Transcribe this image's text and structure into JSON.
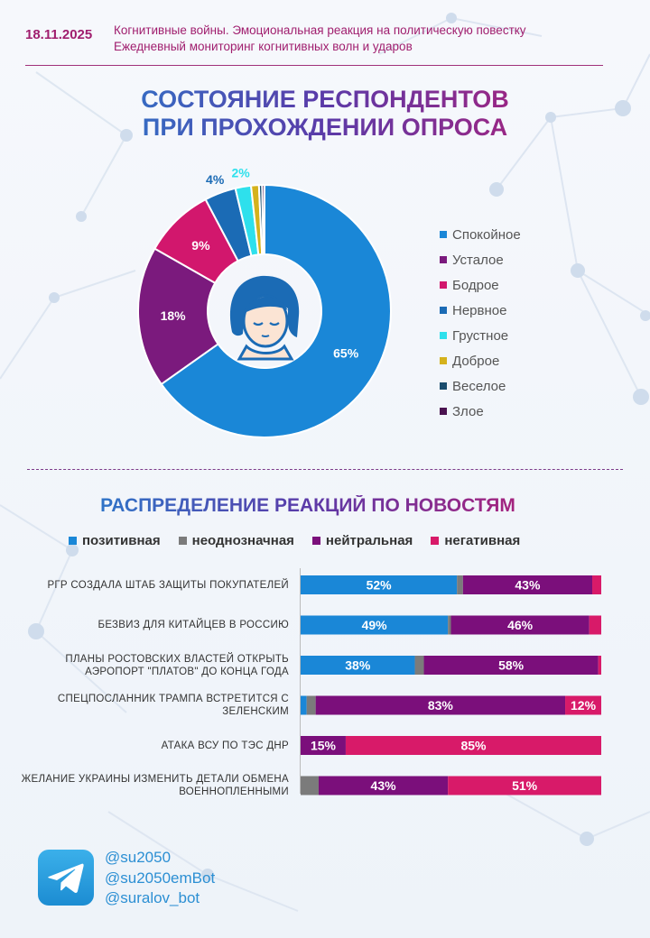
{
  "header": {
    "date": "18.11.2025",
    "line1": "Когнитивные войны. Эмоциональная реакция на политическую повестку",
    "line2": "Ежедневный мониторинг когнитивных волн и ударов"
  },
  "chart_data": [
    {
      "type": "pie",
      "title": "СОСТОЯНИЕ РЕСПОНДЕНТОВ ПРИ ПРОХОЖДЕНИИ ОПРОСА",
      "title_lines": [
        "СОСТОЯНИЕ РЕСПОНДЕНТОВ",
        "ПРИ ПРОХОЖДЕНИИ ОПРОСА"
      ],
      "donut": true,
      "slices": [
        {
          "name": "Спокойное",
          "value": 65,
          "label": "65%",
          "color": "#1a87d7"
        },
        {
          "name": "Усталое",
          "value": 18,
          "label": "18%",
          "color": "#7b1a7d"
        },
        {
          "name": "Бодрое",
          "value": 9,
          "label": "9%",
          "color": "#d2176d"
        },
        {
          "name": "Нервное",
          "value": 4,
          "label": "4%",
          "color": "#1b6bb5"
        },
        {
          "name": "Грустное",
          "value": 2,
          "label": "2%",
          "color": "#2ee0ec"
        },
        {
          "name": "Доброе",
          "value": 1,
          "label": "",
          "color": "#d5b21c"
        },
        {
          "name": "Веселое",
          "value": 0.4,
          "label": "",
          "color": "#1a4d6e"
        },
        {
          "name": "Злое",
          "value": 0.3,
          "label": "",
          "color": "#4a1250"
        }
      ],
      "legend": "right"
    },
    {
      "type": "bar",
      "orientation": "horizontal",
      "stacked": "100%",
      "title": "РАСПРЕДЕЛЕНИЕ РЕАКЦИЙ ПО НОВОСТЯМ",
      "categories": [
        "РГР создала штаб защиты покупателей",
        "Безвиз для китайцев в Россию",
        "Планы ростовских властей открыть аэропорт \"Платов\" до конца года",
        "Спецпосланник Трампа встретится с Зеленским",
        "Атака ВСУ по ТЭС ДНР",
        "Желание Украины изменить детали обмена военнопленными"
      ],
      "series": [
        {
          "name": "позитивная",
          "color": "#1a87d7",
          "values": [
            52,
            49,
            38,
            2,
            0,
            0
          ]
        },
        {
          "name": "неоднозначная",
          "color": "#7b7b7b",
          "values": [
            2,
            1,
            3,
            3,
            0,
            6
          ]
        },
        {
          "name": "нейтральная",
          "color": "#7b0f7b",
          "values": [
            43,
            46,
            58,
            83,
            15,
            43
          ]
        },
        {
          "name": "негативная",
          "color": "#d81a69",
          "values": [
            3,
            4,
            1,
            12,
            85,
            51
          ]
        }
      ],
      "show_labels_min": 10,
      "legend": "top"
    }
  ],
  "footer": {
    "handles": [
      "@su2050",
      "@su2050emBot",
      "@suralov_bot"
    ]
  },
  "icons": {
    "center": "woman-face-icon",
    "telegram": "telegram-icon"
  }
}
